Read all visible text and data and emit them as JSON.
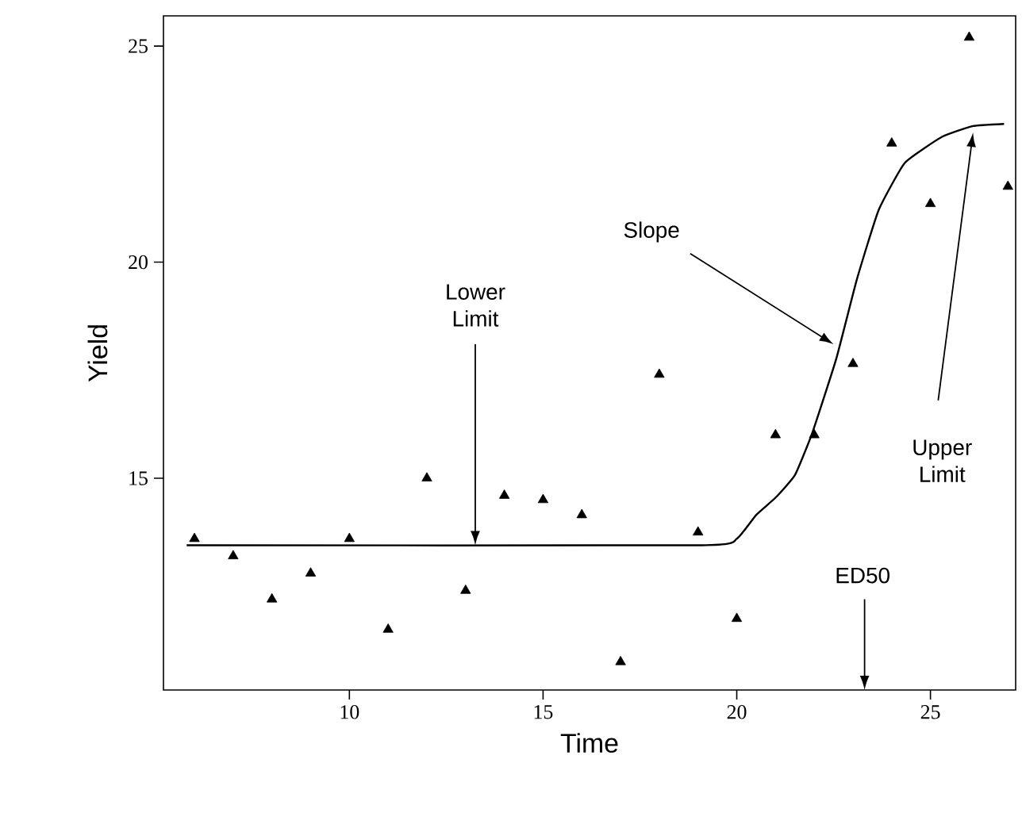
{
  "chart_data": {
    "type": "scatter",
    "xlabel": "Time",
    "ylabel": "Yield",
    "xlim": [
      5.2,
      27.2
    ],
    "ylim": [
      10.1,
      25.7
    ],
    "xticks": [
      10,
      15,
      20,
      25
    ],
    "yticks": [
      15,
      20,
      25
    ],
    "series": [
      {
        "marker": "triangle",
        "color": "#000000",
        "x": [
          6,
          7,
          8,
          9,
          10,
          11,
          12,
          13,
          14,
          15,
          16,
          17,
          18,
          19,
          20,
          21,
          22,
          23,
          24,
          25,
          26,
          27
        ],
        "values": [
          13.6,
          13.2,
          12.2,
          12.8,
          13.6,
          11.5,
          15.0,
          12.4,
          14.6,
          14.5,
          14.15,
          10.75,
          17.4,
          13.75,
          11.75,
          16.0,
          16.0,
          17.65,
          22.75,
          21.35,
          25.2,
          21.75
        ]
      },
      {
        "type": "line",
        "marker": "none",
        "line_style": "solid",
        "color": "#000000",
        "x": [
          5.8,
          19.1,
          20,
          20.5,
          21,
          21.5,
          21.95,
          22.57,
          23.1,
          23.66,
          24.34,
          25.3,
          26.1,
          26.9
        ],
        "values": [
          13.45,
          13.45,
          13.6,
          14.15,
          14.55,
          15.07,
          16.05,
          17.77,
          19.6,
          21.2,
          22.3,
          22.9,
          23.15,
          23.2
        ]
      }
    ],
    "annotations": [
      {
        "text": "Lower Limit",
        "x": 13.25,
        "y": 13.45
      },
      {
        "text": "Slope",
        "x": 22.5,
        "y": 18.1
      },
      "Upper Limit",
      "ED50"
    ]
  }
}
